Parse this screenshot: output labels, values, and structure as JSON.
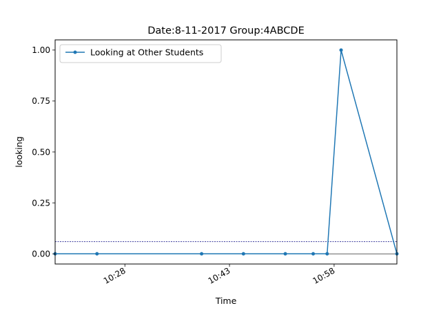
{
  "chart_data": {
    "type": "line",
    "title": "Date:8-11-2017  Group:4ABCDE",
    "xlabel": "Time",
    "ylabel": "looking",
    "ylim": [
      -0.05,
      1.05
    ],
    "xlim": [
      "10:18",
      "11:07"
    ],
    "x_ticks": [
      "10:28",
      "10:43",
      "10:58"
    ],
    "y_ticks": [
      "0.00",
      "0.25",
      "0.50",
      "0.75",
      "1.00"
    ],
    "y_tick_values": [
      0,
      0.25,
      0.5,
      0.75,
      1.0
    ],
    "series": [
      {
        "name": "Looking at Other Students",
        "color": "#1f77b4",
        "marker": "dot",
        "x": [
          "10:18",
          "10:24",
          "10:39",
          "10:45",
          "10:51",
          "10:55",
          "10:57",
          "10:59",
          "11:07"
        ],
        "y": [
          0,
          0,
          0,
          0,
          0,
          0,
          0,
          1,
          0
        ]
      }
    ],
    "reference_lines": [
      {
        "y": 0.06,
        "style": "dashed",
        "color": "#000080"
      },
      {
        "y": 0,
        "style": "solid",
        "color": "#000000"
      }
    ],
    "legend": {
      "position": "top-left"
    },
    "grid": false
  }
}
